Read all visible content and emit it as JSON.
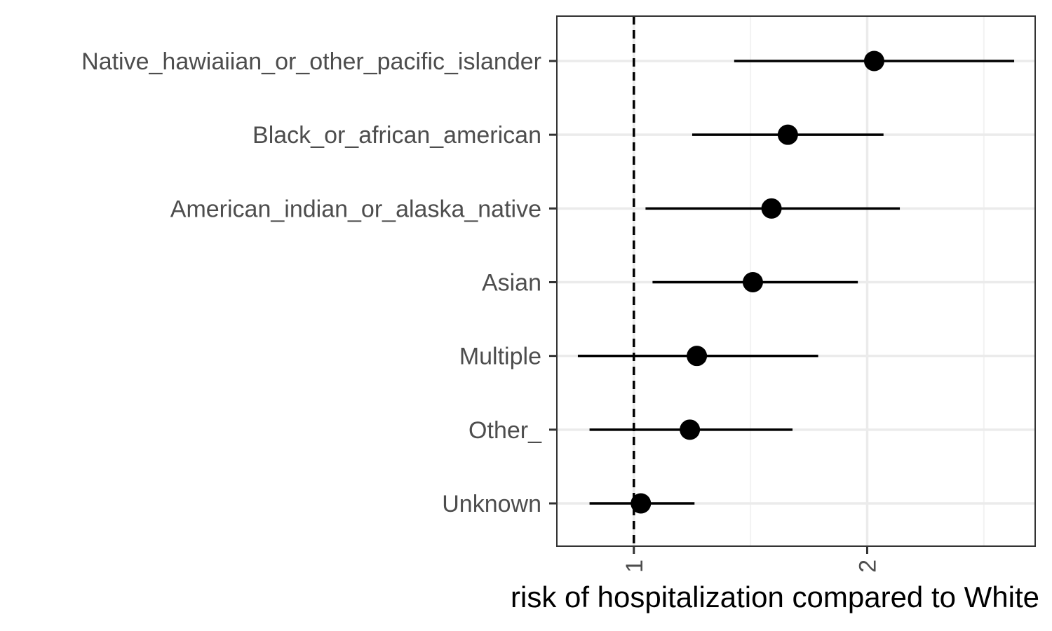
{
  "chart_data": {
    "type": "scatter",
    "subtype": "forest-plot",
    "title": "",
    "xlabel": "risk of hospitalization compared to White",
    "ylabel": "",
    "xlim": [
      0.67,
      2.72
    ],
    "x_ticks": [
      1,
      2
    ],
    "x_tick_labels": [
      "1",
      "2"
    ],
    "x_tick_rotation": 90,
    "reference_line": {
      "x": 1,
      "style": "dashed"
    },
    "grid": true,
    "legend": "none",
    "categories": [
      "Native_hawiaiian_or_other_pacific_islander",
      "Black_or_african_american",
      "American_indian_or_alaska_native",
      "Asian",
      "Multiple",
      "Other_",
      "Unknown"
    ],
    "series": [
      {
        "estimate": [
          2.03,
          1.66,
          1.59,
          1.51,
          1.27,
          1.24,
          1.03
        ],
        "lower": [
          1.43,
          1.25,
          1.05,
          1.08,
          0.76,
          0.81,
          0.81
        ],
        "upper": [
          2.63,
          2.07,
          2.14,
          1.96,
          1.79,
          1.68,
          1.26
        ]
      }
    ],
    "colors": {
      "point": "#000000",
      "errorbar": "#000000",
      "grid_major": "#ebebeb",
      "grid_minor": "#f2f2f2",
      "panel_border": "#333333",
      "tick_text": "#4d4d4d"
    }
  }
}
